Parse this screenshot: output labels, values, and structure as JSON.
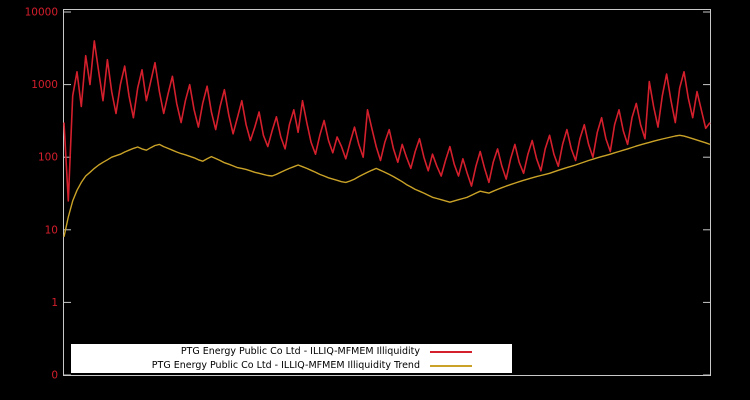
{
  "chart_data": {
    "type": "line",
    "yscale": "log",
    "ylim": [
      0.1,
      10000
    ],
    "grid": false,
    "legend_position": "bottom-center",
    "colors": {
      "background": "#000000",
      "border": "#c8c8c8",
      "axis_labels": "#d41f2c"
    },
    "yticks": [
      {
        "label": "10000",
        "value": 10000
      },
      {
        "label": "1000",
        "value": 1000
      },
      {
        "label": "100",
        "value": 100
      },
      {
        "label": "10",
        "value": 10
      },
      {
        "label": "1",
        "value": 1
      },
      {
        "label": "0",
        "value": 0.1
      }
    ],
    "series": [
      {
        "id": "illiquidity",
        "name": "PTG Energy Public Co Ltd - ILLIQ-MFMEM Illiquidity",
        "color": "#d41f2c",
        "stroke_width": 1.6,
        "values": [
          300,
          25,
          700,
          1500,
          500,
          2500,
          1000,
          4000,
          1500,
          600,
          2200,
          800,
          400,
          1000,
          1800,
          700,
          350,
          900,
          1600,
          600,
          1100,
          2000,
          800,
          400,
          750,
          1300,
          550,
          300,
          600,
          1000,
          450,
          260,
          550,
          950,
          420,
          240,
          500,
          850,
          380,
          210,
          350,
          600,
          280,
          170,
          260,
          420,
          200,
          140,
          230,
          360,
          190,
          130,
          280,
          450,
          220,
          600,
          300,
          160,
          110,
          200,
          320,
          170,
          115,
          190,
          140,
          95,
          160,
          260,
          150,
          100,
          450,
          250,
          140,
          90,
          160,
          240,
          130,
          85,
          150,
          100,
          70,
          120,
          180,
          100,
          65,
          110,
          75,
          55,
          90,
          140,
          80,
          55,
          95,
          60,
          40,
          75,
          120,
          70,
          45,
          85,
          130,
          75,
          50,
          95,
          150,
          85,
          60,
          110,
          170,
          95,
          65,
          130,
          200,
          110,
          75,
          150,
          240,
          130,
          90,
          180,
          280,
          150,
          100,
          220,
          350,
          180,
          120,
          280,
          450,
          230,
          150,
          350,
          550,
          280,
          180,
          1100,
          500,
          260,
          700,
          1400,
          600,
          300,
          900,
          1500,
          650,
          350,
          800,
          450,
          250,
          300
        ]
      },
      {
        "id": "trend",
        "name": "PTG Energy Public Co Ltd - ILLIQ-MFMEM Illiquidity Trend",
        "color": "#c9a227",
        "stroke_width": 1.4,
        "values": [
          8,
          15,
          25,
          35,
          45,
          55,
          62,
          70,
          78,
          85,
          92,
          100,
          105,
          110,
          118,
          125,
          132,
          138,
          130,
          125,
          135,
          145,
          150,
          140,
          132,
          125,
          118,
          112,
          108,
          103,
          98,
          92,
          88,
          95,
          102,
          96,
          90,
          84,
          80,
          76,
          72,
          70,
          68,
          65,
          62,
          60,
          58,
          56,
          55,
          58,
          62,
          66,
          70,
          74,
          78,
          74,
          70,
          66,
          62,
          58,
          55,
          52,
          50,
          48,
          46,
          45,
          47,
          50,
          54,
          58,
          62,
          66,
          70,
          66,
          62,
          58,
          54,
          50,
          46,
          42,
          39,
          36,
          34,
          32,
          30,
          28,
          27,
          26,
          25,
          24,
          25,
          26,
          27,
          28,
          30,
          32,
          34,
          33,
          32,
          34,
          36,
          38,
          40,
          42,
          44,
          46,
          48,
          50,
          52,
          54,
          56,
          58,
          60,
          63,
          66,
          69,
          72,
          75,
          78,
          82,
          86,
          90,
          94,
          98,
          102,
          106,
          110,
          115,
          120,
          125,
          130,
          136,
          142,
          148,
          154,
          160,
          166,
          172,
          178,
          184,
          190,
          196,
          200,
          195,
          188,
          180,
          172,
          165,
          158,
          150
        ]
      }
    ]
  }
}
